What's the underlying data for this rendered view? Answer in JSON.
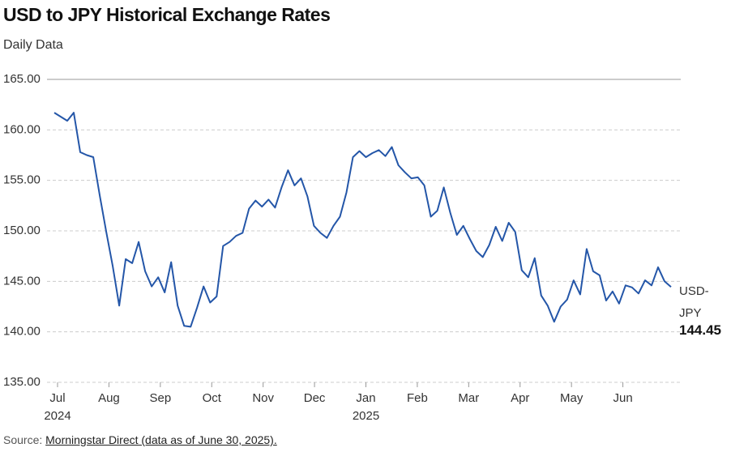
{
  "chart_data": {
    "type": "line",
    "title": "USD to JPY Historical Exchange Rates",
    "subtitle": "Daily Data",
    "xtick_labels": [
      "Jul",
      "Aug",
      "Sep",
      "Oct",
      "Nov",
      "Dec",
      "Jan",
      "Feb",
      "Mar",
      "Apr",
      "May",
      "Jun"
    ],
    "xtick_years": [
      "2024",
      null,
      null,
      null,
      null,
      null,
      "2025",
      null,
      null,
      null,
      null,
      null
    ],
    "series": [
      {
        "name": "USD-JPY",
        "color": "#2456a8",
        "values": [
          161.7,
          161.3,
          160.9,
          161.7,
          157.8,
          157.5,
          157.3,
          153.5,
          149.9,
          146.5,
          142.6,
          147.2,
          146.8,
          148.9,
          146.0,
          144.5,
          145.4,
          143.9,
          146.9,
          142.6,
          140.6,
          140.5,
          142.4,
          144.5,
          142.9,
          143.5,
          148.5,
          148.9,
          149.5,
          149.8,
          152.2,
          153.0,
          152.4,
          153.1,
          152.3,
          154.3,
          156.0,
          154.5,
          155.2,
          153.4,
          150.5,
          149.8,
          149.3,
          150.5,
          151.4,
          153.8,
          157.3,
          157.9,
          157.3,
          157.7,
          158.0,
          157.4,
          158.3,
          156.5,
          155.8,
          155.2,
          155.3,
          154.5,
          151.4,
          152.0,
          154.3,
          151.8,
          149.6,
          150.5,
          149.2,
          148.0,
          147.4,
          148.6,
          150.4,
          149.0,
          150.8,
          149.9,
          146.1,
          145.4,
          147.3,
          143.6,
          142.6,
          141.0,
          142.5,
          143.2,
          145.1,
          143.7,
          148.2,
          146.0,
          145.6,
          143.1,
          144.0,
          142.8,
          144.6,
          144.4,
          143.8,
          145.1,
          144.6,
          146.4,
          145.0,
          144.45
        ]
      }
    ],
    "ylim": [
      135,
      165
    ],
    "yticks": [
      {
        "value": 135,
        "label": "135.00"
      },
      {
        "value": 140,
        "label": "140.00"
      },
      {
        "value": 145,
        "label": "145.00"
      },
      {
        "value": 150,
        "label": "150.00"
      },
      {
        "value": 155,
        "label": "155.00"
      },
      {
        "value": 160,
        "label": "160.00"
      },
      {
        "value": 165,
        "label": "165.00"
      }
    ],
    "grid": true,
    "source_prefix": "Source:",
    "source_link": "Morningstar Direct (data as of June 30, 2025)."
  }
}
